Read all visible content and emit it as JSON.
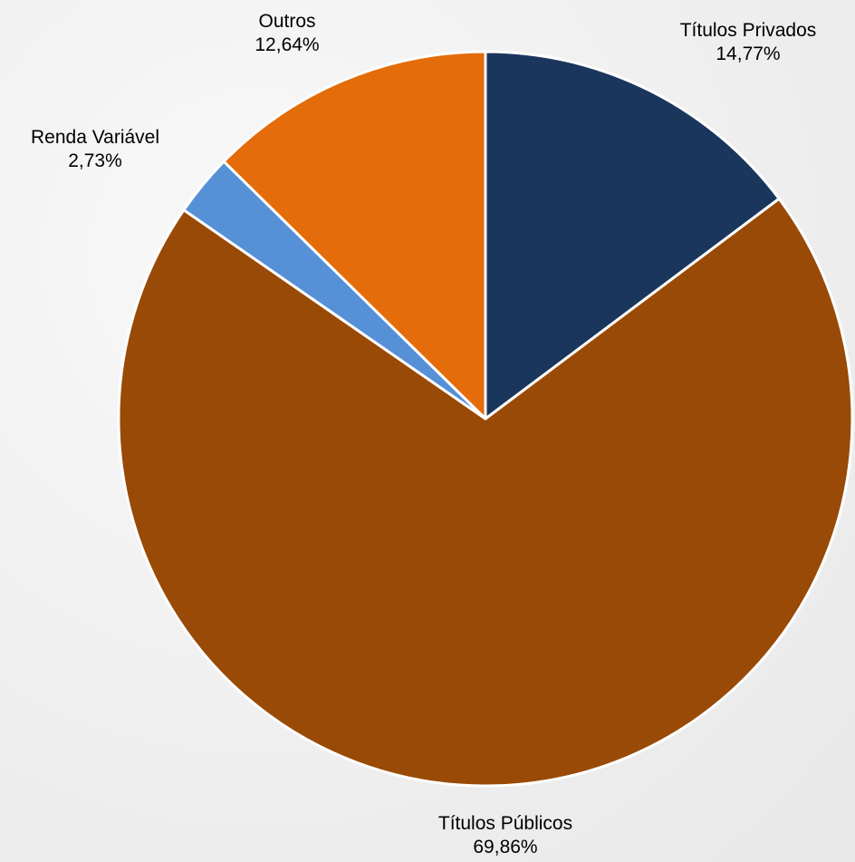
{
  "chart_data": {
    "type": "pie",
    "title": "",
    "start_angle_deg": 0,
    "direction": "clockwise",
    "slices": [
      {
        "label": "Títulos Privados",
        "value": 14.77,
        "value_label": "14,77%",
        "color": "#1b365d"
      },
      {
        "label": "Títulos Públicos",
        "value": 69.86,
        "value_label": "69,86%",
        "color": "#994a06"
      },
      {
        "label": "Renda Variável",
        "value": 2.73,
        "value_label": "2,73%",
        "color": "#5690d6"
      },
      {
        "label": "Outros",
        "value": 12.64,
        "value_label": "12,64%",
        "color": "#e46c0a"
      }
    ],
    "legend": "none",
    "grid": false
  }
}
